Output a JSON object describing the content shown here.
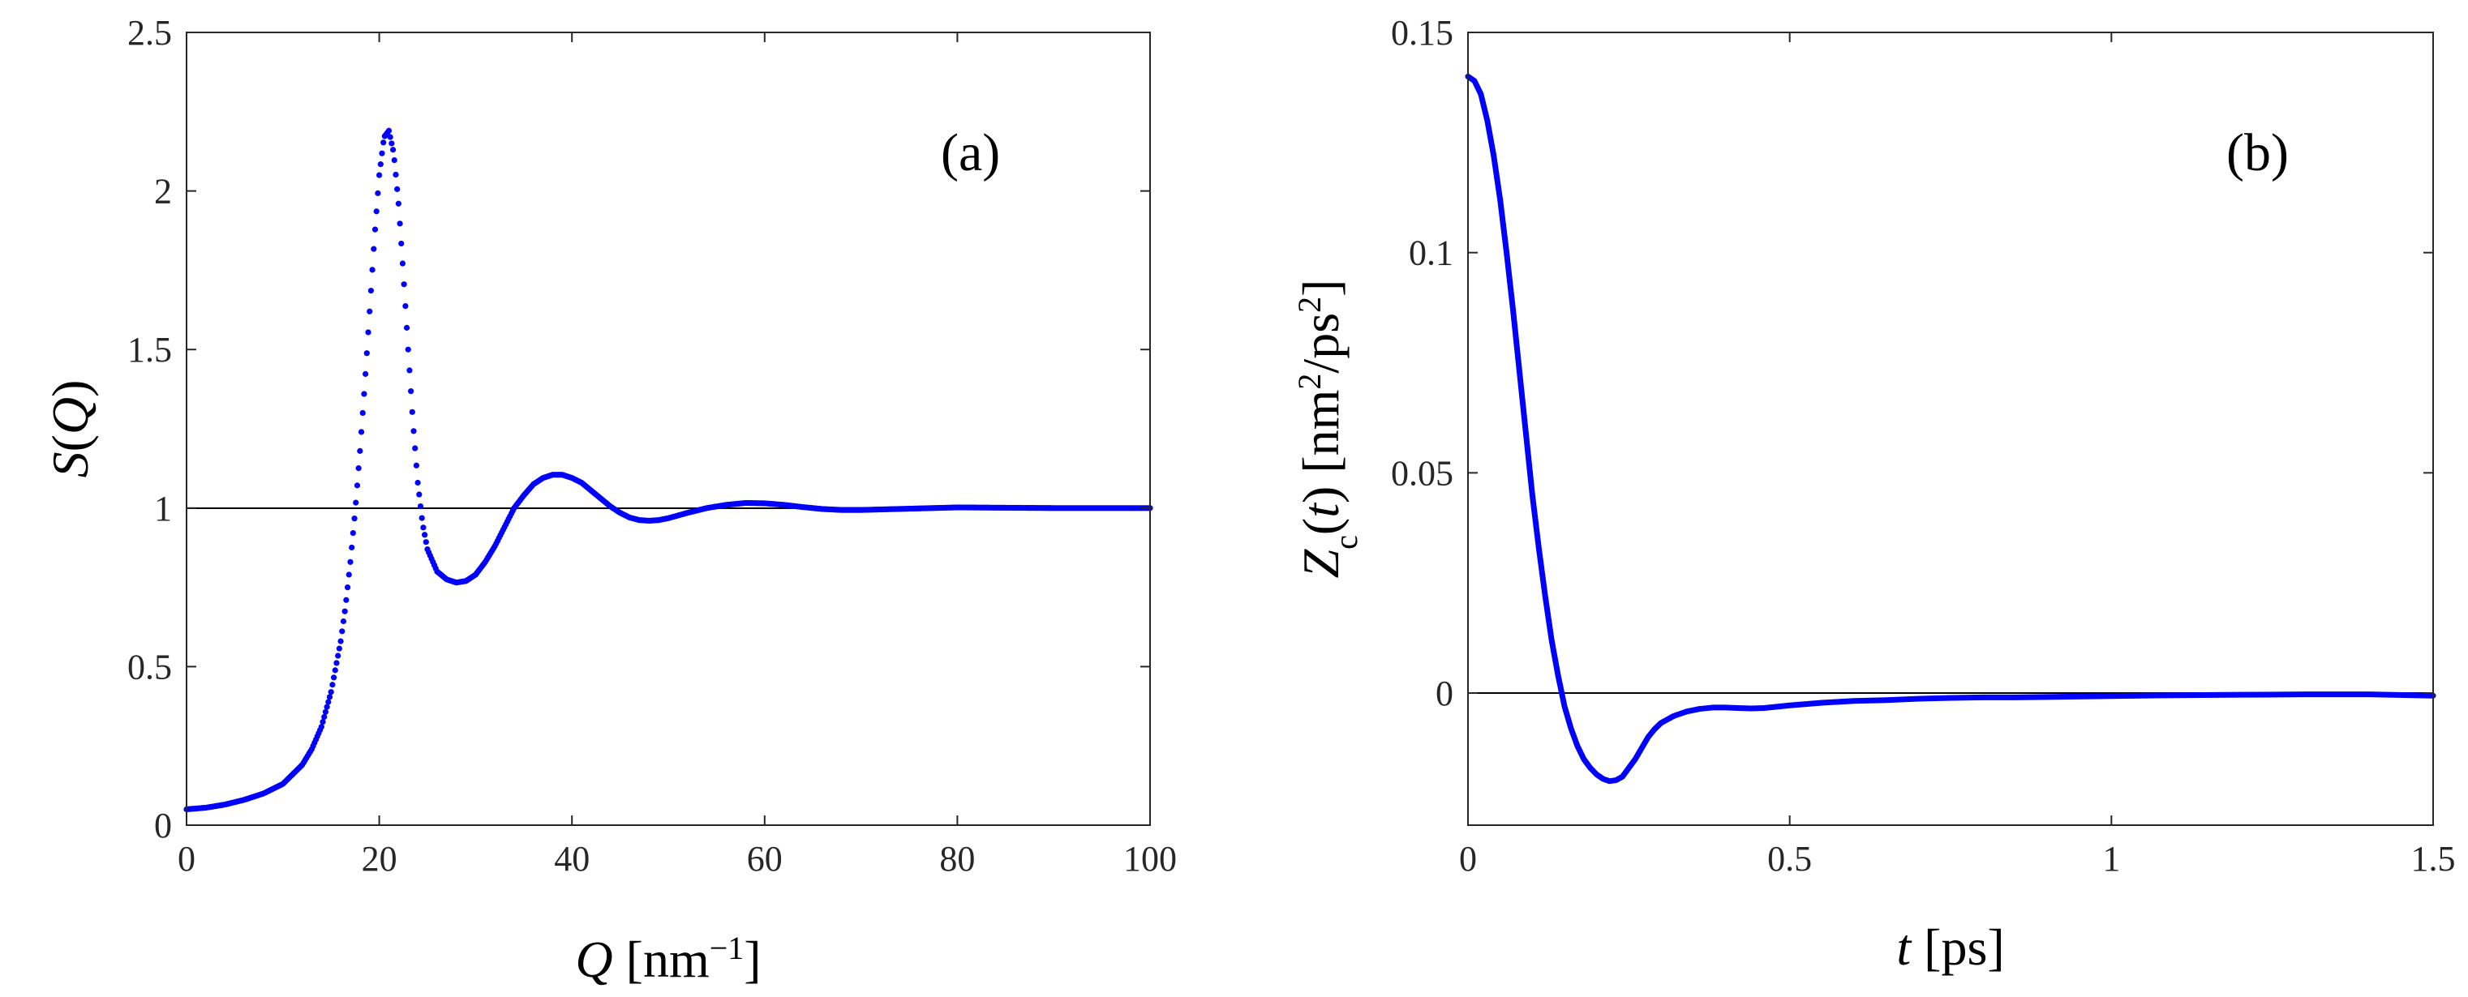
{
  "chart_data": [
    {
      "panel": "(a)",
      "type": "scatter",
      "xlabel": "Q [nm−1]",
      "ylabel": "S(Q)",
      "xlim": [
        0,
        100
      ],
      "ylim": [
        0,
        2.5
      ],
      "xticks": [
        "0",
        "20",
        "40",
        "60",
        "80",
        "100"
      ],
      "yticks": [
        "0",
        "0.5",
        "1",
        "1.5",
        "2",
        "2.5"
      ],
      "reference_line_y": 1,
      "series": [
        {
          "name": "S(Q)",
          "color": "#0000ff",
          "x": [
            0,
            2,
            4,
            6,
            8,
            10,
            12,
            13,
            14,
            15,
            16,
            16.5,
            17,
            17.5,
            18,
            18.5,
            19,
            19.5,
            20,
            20.5,
            21,
            21.5,
            22,
            22.5,
            23,
            23.5,
            24,
            24.5,
            25,
            26,
            27,
            28,
            29,
            30,
            31,
            32,
            33,
            34,
            35,
            36,
            37,
            38,
            39,
            40,
            41,
            42,
            43,
            44,
            45,
            46,
            47,
            48,
            49,
            50,
            52,
            54,
            56,
            58,
            60,
            62,
            64,
            66,
            68,
            70,
            75,
            80,
            85,
            90,
            95,
            100
          ],
          "y": [
            0.05,
            0.055,
            0.065,
            0.08,
            0.1,
            0.13,
            0.19,
            0.24,
            0.31,
            0.42,
            0.58,
            0.69,
            0.83,
            0.99,
            1.18,
            1.39,
            1.62,
            1.85,
            2.05,
            2.17,
            2.19,
            2.12,
            1.96,
            1.74,
            1.5,
            1.27,
            1.08,
            0.95,
            0.87,
            0.8,
            0.775,
            0.765,
            0.77,
            0.79,
            0.83,
            0.88,
            0.94,
            1.0,
            1.04,
            1.075,
            1.095,
            1.105,
            1.105,
            1.095,
            1.08,
            1.055,
            1.03,
            1.005,
            0.985,
            0.97,
            0.962,
            0.96,
            0.962,
            0.968,
            0.985,
            1.0,
            1.01,
            1.016,
            1.015,
            1.01,
            1.003,
            0.997,
            0.994,
            0.994,
            0.998,
            1.002,
            1.001,
            1.0,
            1.0,
            1.0
          ]
        }
      ]
    },
    {
      "panel": "(b)",
      "type": "line",
      "xlabel": "t [ps]",
      "ylabel": "Zc(t) [nm2/ps2]",
      "xlim": [
        0,
        1.5
      ],
      "ylim": [
        -0.03,
        0.15
      ],
      "xticks": [
        "0",
        "0.5",
        "1",
        "1.5"
      ],
      "yticks": [
        "0",
        "0.05",
        "0.1",
        "0.15"
      ],
      "reference_line_y": 0,
      "series": [
        {
          "name": "Zc(t)",
          "color": "#0000ff",
          "x": [
            0,
            0.01,
            0.02,
            0.03,
            0.04,
            0.05,
            0.06,
            0.07,
            0.08,
            0.09,
            0.1,
            0.11,
            0.12,
            0.13,
            0.14,
            0.15,
            0.16,
            0.17,
            0.18,
            0.19,
            0.2,
            0.21,
            0.22,
            0.23,
            0.24,
            0.25,
            0.26,
            0.27,
            0.28,
            0.29,
            0.3,
            0.32,
            0.34,
            0.36,
            0.38,
            0.4,
            0.42,
            0.44,
            0.46,
            0.48,
            0.5,
            0.55,
            0.6,
            0.65,
            0.7,
            0.75,
            0.8,
            0.85,
            0.9,
            1.0,
            1.1,
            1.2,
            1.3,
            1.4,
            1.5
          ],
          "y": [
            0.14,
            0.139,
            0.136,
            0.13,
            0.122,
            0.112,
            0.1,
            0.087,
            0.073,
            0.059,
            0.045,
            0.033,
            0.022,
            0.012,
            0.004,
            -0.003,
            -0.008,
            -0.012,
            -0.015,
            -0.017,
            -0.0185,
            -0.0195,
            -0.02,
            -0.0198,
            -0.019,
            -0.017,
            -0.015,
            -0.0125,
            -0.01,
            -0.0082,
            -0.0068,
            -0.0052,
            -0.0042,
            -0.0036,
            -0.0033,
            -0.0033,
            -0.0034,
            -0.0035,
            -0.0034,
            -0.0031,
            -0.0028,
            -0.0022,
            -0.0018,
            -0.0016,
            -0.0013,
            -0.0011,
            -0.001,
            -0.001,
            -0.0009,
            -0.0007,
            -0.0005,
            -0.0004,
            -0.0003,
            -0.0003,
            -0.0006
          ]
        }
      ]
    }
  ]
}
